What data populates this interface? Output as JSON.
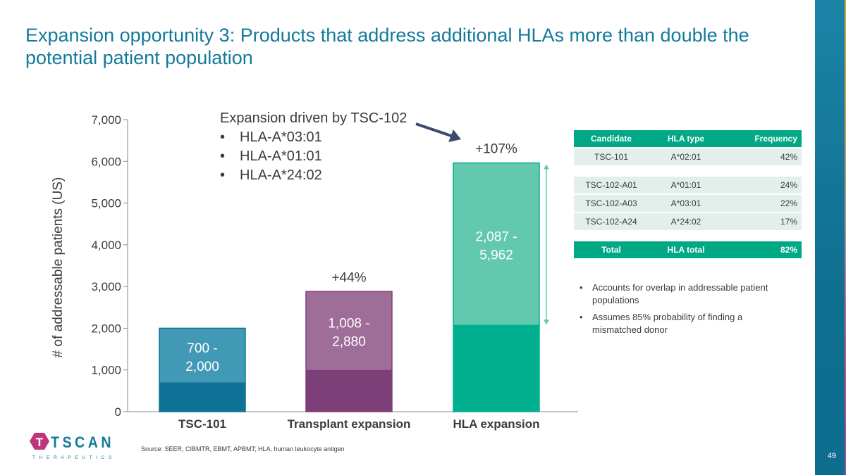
{
  "title": "Expansion opportunity 3: Products that address additional HLAs more than double the potential patient population",
  "page_number": "49",
  "source": "Source: SEER, CIBMTR, EBMT, APBMT; HLA, human leukocyte antigen",
  "logo": {
    "name": "TSCAN",
    "sub": "THERAPEUTICS",
    "letter": "T"
  },
  "callout": {
    "heading": "Expansion driven by TSC-102",
    "items": [
      "HLA-A*03:01",
      "HLA-A*01:01",
      "HLA-A*24:02"
    ]
  },
  "chart_data": {
    "type": "bar",
    "stacked": true,
    "categories": [
      "TSC-101",
      "Transplant expansion",
      "HLA expansion"
    ],
    "series": [
      {
        "values": [
          700,
          1008,
          2087
        ],
        "colors": [
          "#0e7296",
          "#7d3f78",
          "#00b08e"
        ]
      },
      {
        "values": [
          1300,
          1872,
          3875
        ],
        "colors": [
          "#4299b6",
          "#9e6e98",
          "#63c9ae"
        ]
      }
    ],
    "totals": [
      2000,
      2880,
      5962
    ],
    "data_labels": [
      [
        "700 -",
        "2,000"
      ],
      [
        "1,008 -",
        "2,880"
      ],
      [
        "2,087 -",
        "5,962"
      ]
    ],
    "growth_labels": [
      "",
      "+44%",
      "+107%"
    ],
    "ylabel": "# of addressable patients (US)",
    "ylim": [
      0,
      7000
    ],
    "yticks": [
      0,
      1000,
      2000,
      3000,
      4000,
      5000,
      6000,
      7000
    ],
    "ytick_labels": [
      "0",
      "1,000",
      "2,000",
      "3,000",
      "4,000",
      "5,000",
      "6,000",
      "7,000"
    ]
  },
  "table": {
    "headers": [
      "Candidate",
      "HLA type",
      "Frequency"
    ],
    "groups": [
      [
        [
          "TSC-101",
          "A*02:01",
          "42%"
        ]
      ],
      [
        [
          "TSC-102-A01",
          "A*01:01",
          "24%"
        ],
        [
          "TSC-102-A03",
          "A*03:01",
          "22%"
        ],
        [
          "TSC-102-A24",
          "A*24:02",
          "17%"
        ]
      ]
    ],
    "total": [
      "Total",
      "HLA total",
      "82%"
    ]
  },
  "notes": [
    "Accounts for overlap in addressable patient populations",
    "Assumes 85% probability of finding a mismatched donor"
  ],
  "colors": {
    "title": "#137a9b",
    "table_header": "#00a886",
    "table_row": "#e3efea",
    "logo_magenta": "#c0347c",
    "logo_teal": "#137a9b"
  }
}
